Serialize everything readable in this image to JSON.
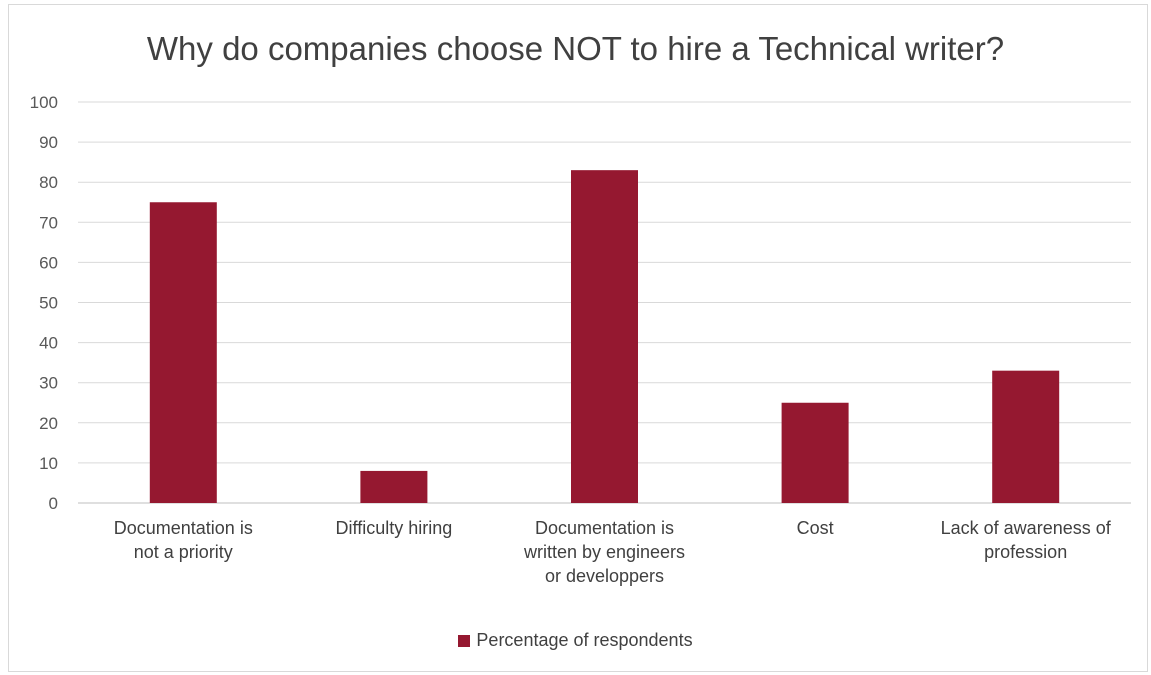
{
  "chart_data": {
    "type": "bar",
    "title": "Why do companies choose NOT to hire a Technical writer?",
    "xlabel": "",
    "ylabel": "",
    "ylim": [
      0,
      100
    ],
    "yticks": [
      "0",
      "10",
      "20",
      "30",
      "40",
      "50",
      "60",
      "70",
      "80",
      "90",
      "100"
    ],
    "grid": true,
    "legend_position": "bottom",
    "categories": [
      [
        "Documentation is",
        "not a priority"
      ],
      [
        "Difficulty hiring"
      ],
      [
        "Documentation is",
        "written by engineers",
        "or developpers"
      ],
      [
        "Cost"
      ],
      [
        "Lack of awareness of",
        "profession"
      ]
    ],
    "series": [
      {
        "name": "Percentage of respondents",
        "color": "#951830",
        "values": [
          75,
          8,
          83,
          25,
          33
        ]
      }
    ]
  }
}
